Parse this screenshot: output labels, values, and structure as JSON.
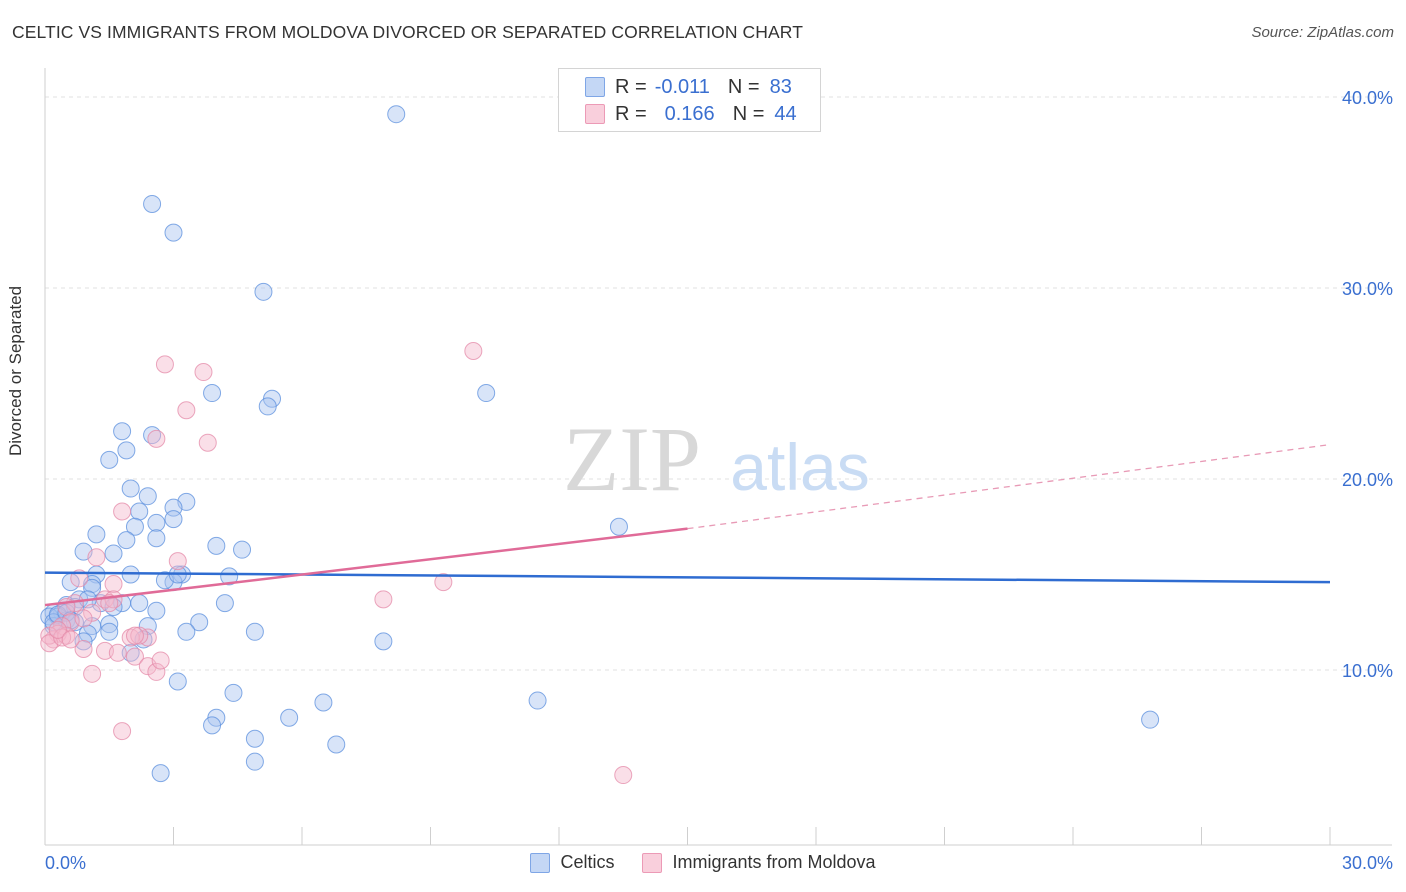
{
  "title": "CELTIC VS IMMIGRANTS FROM MOLDOVA DIVORCED OR SEPARATED CORRELATION CHART",
  "source": "Source: ZipAtlas.com",
  "watermark": {
    "zip": "ZIP",
    "atlas": "atlas"
  },
  "legend_top": [
    {
      "r_label": "R =",
      "r_value": "-0.011",
      "n_label": "N =",
      "n_value": "83",
      "color": "#a8c4ef"
    },
    {
      "r_label": "R =",
      "r_value": "0.166",
      "n_label": "N =",
      "n_value": "44",
      "color": "#f4b8cc"
    }
  ],
  "legend_bottom": [
    {
      "name": "Celtics",
      "color": "#a8c4ef"
    },
    {
      "name": "Immigrants from Moldova",
      "color": "#f4b8cc"
    }
  ],
  "chart_data": {
    "type": "scatter",
    "title": "CELTIC VS IMMIGRANTS FROM MOLDOVA DIVORCED OR SEPARATED CORRELATION CHART",
    "xlabel": "",
    "ylabel": "Divorced or Separated",
    "xlim": [
      0,
      30
    ],
    "ylim": [
      0,
      40
    ],
    "x_tick_labels": [
      "0.0%",
      "30.0%"
    ],
    "y_ticks": [
      10,
      20,
      30,
      40
    ],
    "y_tick_labels": [
      "10.0%",
      "20.0%",
      "30.0%",
      "40.0%"
    ],
    "grid": true,
    "series": [
      {
        "name": "Celtics",
        "color": "#5b8fde",
        "fill": "#a8c4ef",
        "trend": {
          "x": [
            0,
            30
          ],
          "y": [
            15.1,
            14.6
          ],
          "style": "solid"
        },
        "points": [
          [
            8.2,
            39.1
          ],
          [
            2.5,
            34.4
          ],
          [
            3.0,
            32.9
          ],
          [
            5.1,
            29.8
          ],
          [
            10.3,
            24.5
          ],
          [
            3.9,
            24.5
          ],
          [
            5.3,
            24.2
          ],
          [
            5.2,
            23.8
          ],
          [
            1.8,
            22.5
          ],
          [
            2.5,
            22.3
          ],
          [
            1.9,
            21.5
          ],
          [
            1.5,
            21.0
          ],
          [
            2.0,
            19.5
          ],
          [
            2.4,
            19.1
          ],
          [
            3.3,
            18.8
          ],
          [
            3.0,
            18.5
          ],
          [
            2.2,
            18.3
          ],
          [
            3.0,
            17.9
          ],
          [
            2.6,
            17.7
          ],
          [
            2.1,
            17.5
          ],
          [
            13.4,
            17.5
          ],
          [
            1.2,
            17.1
          ],
          [
            1.9,
            16.8
          ],
          [
            2.6,
            16.9
          ],
          [
            4.0,
            16.5
          ],
          [
            4.6,
            16.3
          ],
          [
            0.9,
            16.2
          ],
          [
            1.6,
            16.1
          ],
          [
            1.2,
            15.0
          ],
          [
            2.0,
            15.0
          ],
          [
            3.2,
            15.0
          ],
          [
            4.3,
            14.9
          ],
          [
            0.6,
            14.6
          ],
          [
            1.1,
            14.5
          ],
          [
            3.0,
            14.6
          ],
          [
            1.1,
            14.3
          ],
          [
            0.8,
            13.7
          ],
          [
            0.5,
            13.4
          ],
          [
            1.3,
            13.5
          ],
          [
            1.8,
            13.5
          ],
          [
            2.2,
            13.5
          ],
          [
            4.2,
            13.5
          ],
          [
            1.6,
            13.3
          ],
          [
            0.7,
            13.3
          ],
          [
            0.4,
            13.0
          ],
          [
            0.2,
            13.0
          ],
          [
            2.6,
            13.1
          ],
          [
            0.1,
            12.8
          ],
          [
            0.3,
            12.8
          ],
          [
            0.5,
            12.6
          ],
          [
            0.7,
            12.5
          ],
          [
            1.5,
            12.4
          ],
          [
            3.6,
            12.5
          ],
          [
            1.1,
            12.3
          ],
          [
            2.4,
            12.3
          ],
          [
            0.2,
            12.3
          ],
          [
            1.5,
            12.0
          ],
          [
            4.9,
            12.0
          ],
          [
            3.3,
            12.0
          ],
          [
            1.0,
            11.9
          ],
          [
            2.3,
            11.6
          ],
          [
            0.9,
            11.5
          ],
          [
            7.9,
            11.5
          ],
          [
            2.0,
            10.9
          ],
          [
            3.1,
            9.4
          ],
          [
            4.4,
            8.8
          ],
          [
            6.5,
            8.3
          ],
          [
            11.5,
            8.4
          ],
          [
            25.8,
            7.4
          ],
          [
            4.0,
            7.5
          ],
          [
            5.7,
            7.5
          ],
          [
            3.9,
            7.1
          ],
          [
            4.9,
            6.4
          ],
          [
            6.8,
            6.1
          ],
          [
            4.9,
            5.2
          ],
          [
            2.7,
            4.6
          ],
          [
            0.2,
            12.5
          ],
          [
            0.3,
            12.9
          ],
          [
            0.5,
            13.0
          ],
          [
            0.6,
            12.6
          ],
          [
            1.0,
            13.7
          ],
          [
            2.8,
            14.7
          ],
          [
            3.1,
            15.0
          ]
        ]
      },
      {
        "name": "Immigrants from Moldova",
        "color": "#e48aa8",
        "fill": "#f4b8cc",
        "trend": {
          "x": [
            0,
            15.0
          ],
          "y": [
            13.4,
            17.4
          ],
          "style": "solid",
          "dashed_extension": {
            "x": [
              15.0,
              30
            ],
            "y": [
              17.4,
              21.8
            ]
          }
        },
        "points": [
          [
            10.0,
            26.7
          ],
          [
            2.8,
            26.0
          ],
          [
            3.7,
            25.6
          ],
          [
            3.3,
            23.6
          ],
          [
            2.6,
            22.1
          ],
          [
            3.8,
            21.9
          ],
          [
            1.8,
            18.3
          ],
          [
            3.1,
            15.7
          ],
          [
            1.2,
            15.9
          ],
          [
            9.3,
            14.6
          ],
          [
            7.9,
            13.7
          ],
          [
            1.6,
            14.5
          ],
          [
            0.8,
            14.8
          ],
          [
            1.4,
            13.7
          ],
          [
            1.6,
            13.7
          ],
          [
            0.7,
            13.5
          ],
          [
            0.5,
            13.3
          ],
          [
            1.5,
            13.5
          ],
          [
            1.1,
            13.0
          ],
          [
            0.6,
            12.5
          ],
          [
            0.4,
            12.3
          ],
          [
            0.3,
            11.9
          ],
          [
            0.2,
            11.6
          ],
          [
            0.1,
            11.8
          ],
          [
            0.1,
            11.4
          ],
          [
            0.5,
            11.8
          ],
          [
            0.4,
            11.7
          ],
          [
            0.9,
            11.1
          ],
          [
            1.4,
            11.0
          ],
          [
            1.7,
            10.9
          ],
          [
            2.0,
            11.7
          ],
          [
            2.4,
            11.7
          ],
          [
            2.1,
            10.7
          ],
          [
            2.2,
            11.8
          ],
          [
            2.4,
            10.2
          ],
          [
            2.6,
            9.9
          ],
          [
            2.7,
            10.5
          ],
          [
            1.1,
            9.8
          ],
          [
            1.8,
            6.8
          ],
          [
            13.5,
            4.5
          ],
          [
            0.3,
            12.1
          ],
          [
            0.6,
            11.6
          ],
          [
            0.9,
            12.7
          ],
          [
            2.1,
            11.8
          ]
        ]
      }
    ]
  }
}
